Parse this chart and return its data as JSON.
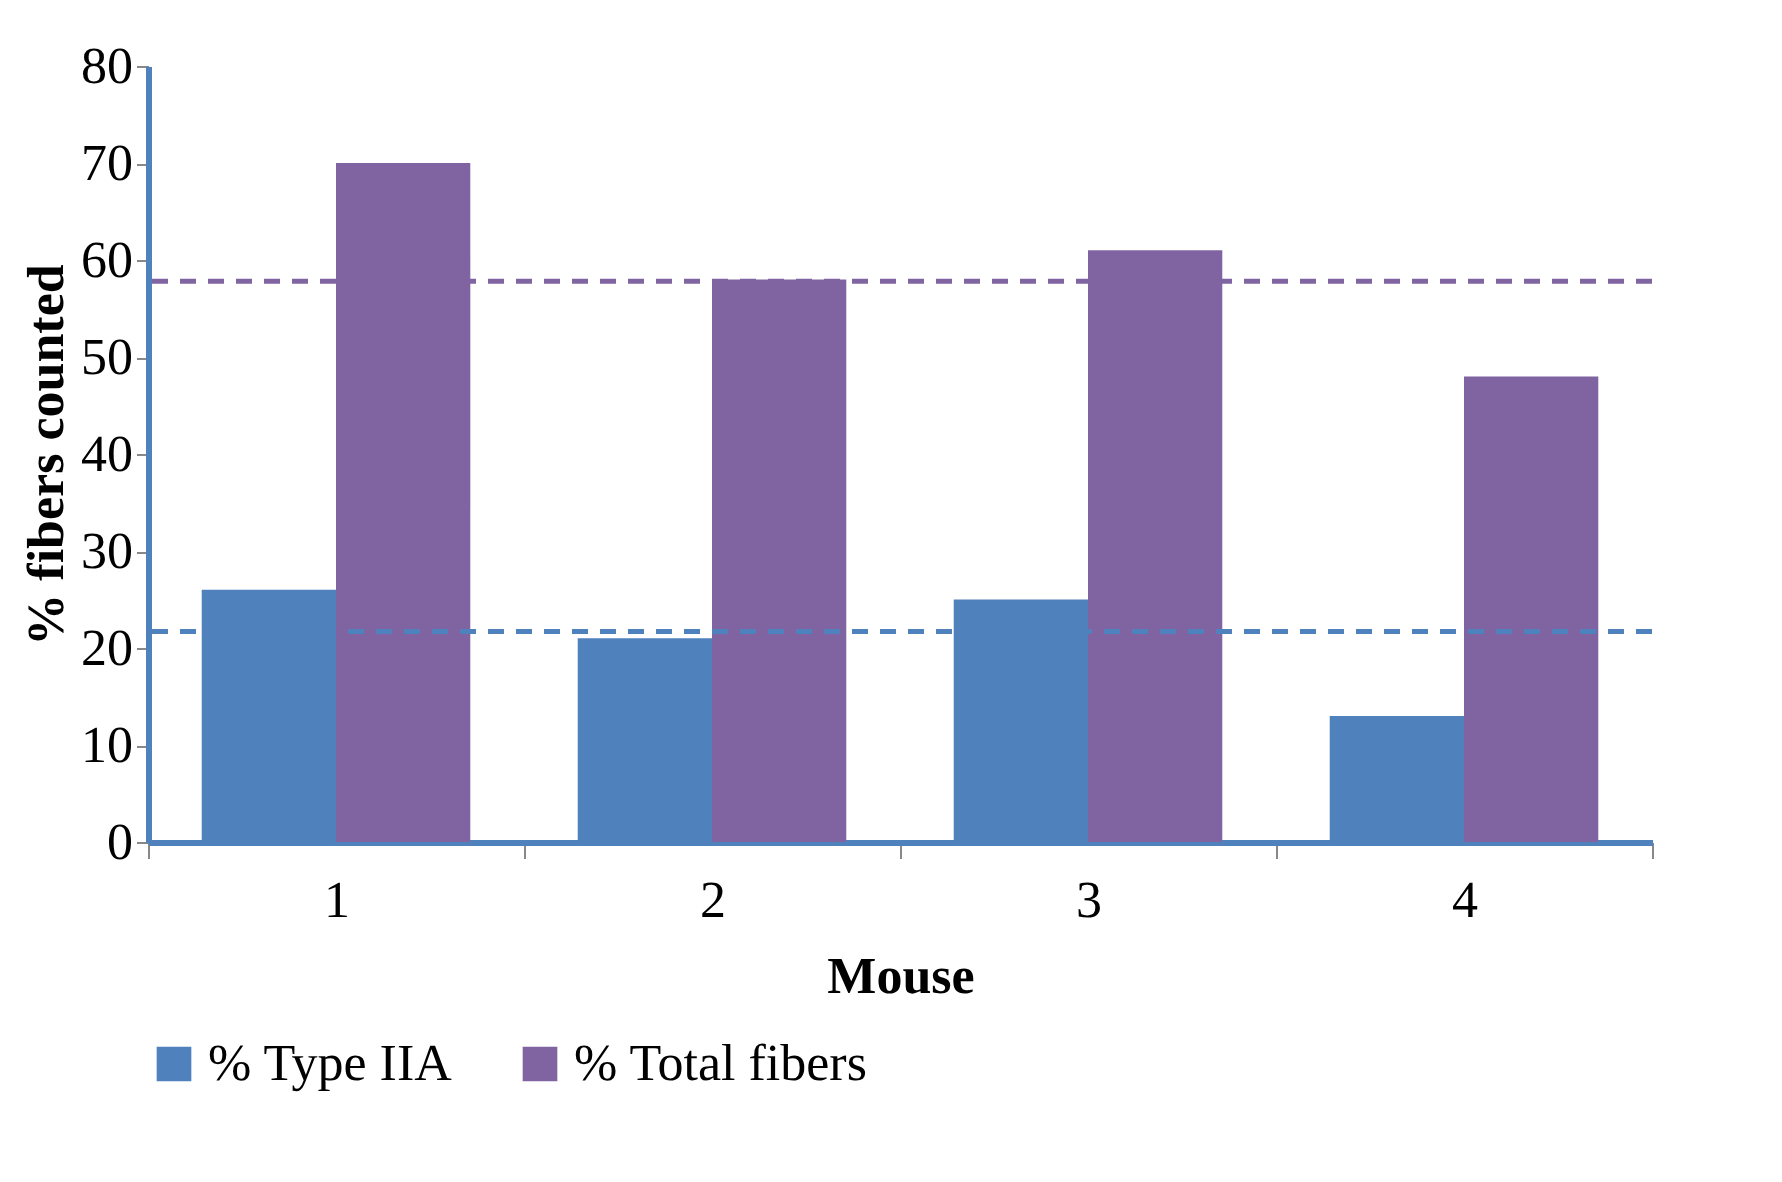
{
  "chart_data": {
    "type": "bar",
    "xlabel": "Mouse",
    "ylabel": "% fibers counted",
    "categories": [
      "1",
      "2",
      "3",
      "4"
    ],
    "series": [
      {
        "name": "% Type IIA",
        "color": "#4f81bd",
        "values": [
          26,
          21,
          25,
          13
        ]
      },
      {
        "name": "% Total fibers",
        "color": "#8064a2",
        "values": [
          70,
          58,
          61,
          48
        ]
      }
    ],
    "ylim": [
      0,
      80
    ],
    "yticks": [
      0,
      10,
      20,
      30,
      40,
      50,
      60,
      70,
      80
    ],
    "grid": false,
    "legend": "bottom",
    "ref_lines": [
      {
        "axis": "y",
        "value": 57.8,
        "label": null,
        "color": "#8064a2",
        "line_style": "dashed"
      },
      {
        "axis": "y",
        "value": 21.7,
        "label": null,
        "color": "#4f81bd",
        "line_style": "dashed"
      }
    ]
  }
}
